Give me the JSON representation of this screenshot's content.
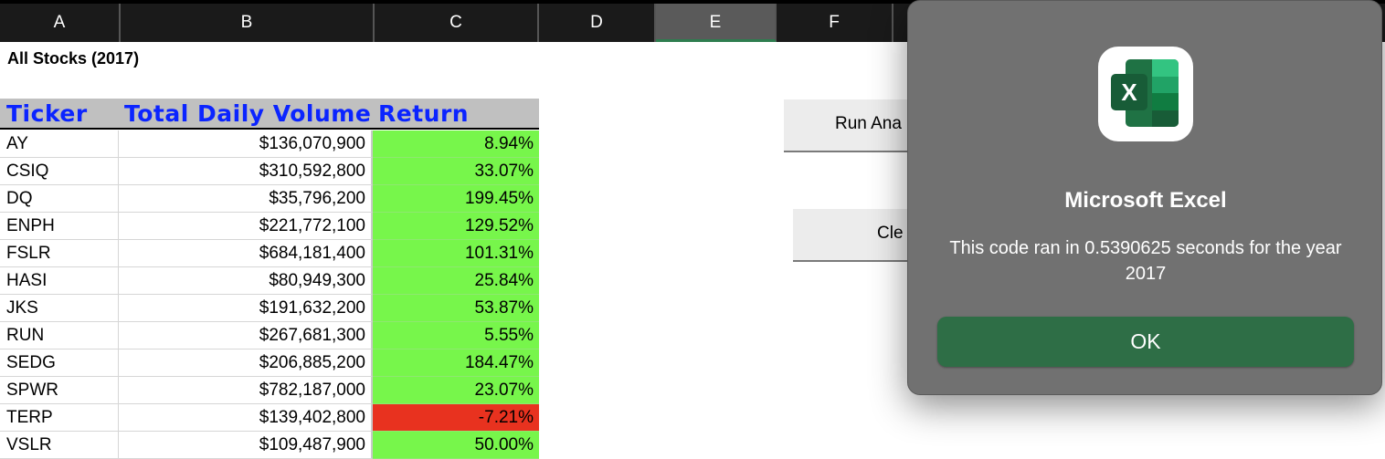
{
  "columns": [
    "A",
    "B",
    "C",
    "D",
    "E",
    "F"
  ],
  "sheet": {
    "title": "All Stocks (2017)",
    "headers": {
      "ticker": "Ticker",
      "volume": "Total Daily Volume",
      "return": "Return"
    },
    "rows": [
      {
        "ticker": "AY",
        "volume": "$136,070,900",
        "return": "8.94%"
      },
      {
        "ticker": "CSIQ",
        "volume": "$310,592,800",
        "return": "33.07%"
      },
      {
        "ticker": "DQ",
        "volume": "$35,796,200",
        "return": "199.45%"
      },
      {
        "ticker": "ENPH",
        "volume": "$221,772,100",
        "return": "129.52%"
      },
      {
        "ticker": "FSLR",
        "volume": "$684,181,400",
        "return": "101.31%"
      },
      {
        "ticker": "HASI",
        "volume": "$80,949,300",
        "return": "25.84%"
      },
      {
        "ticker": "JKS",
        "volume": "$191,632,200",
        "return": "53.87%"
      },
      {
        "ticker": "RUN",
        "volume": "$267,681,300",
        "return": "5.55%"
      },
      {
        "ticker": "SEDG",
        "volume": "$206,885,200",
        "return": "184.47%"
      },
      {
        "ticker": "SPWR",
        "volume": "$782,187,000",
        "return": "23.07%"
      },
      {
        "ticker": "TERP",
        "volume": "$139,402,800",
        "return": "-7.21%"
      },
      {
        "ticker": "VSLR",
        "volume": "$109,487,900",
        "return": "50.00%"
      }
    ]
  },
  "buttons": {
    "run_label": "Run Ana",
    "clear_label": "Cle"
  },
  "dialog": {
    "app_name": "Microsoft Excel",
    "message": "This code ran in 0.5390625 seconds for the year 2017",
    "ok_label": "OK",
    "icon": "excel-app-icon",
    "icon_letter": "X"
  },
  "colors": {
    "positive": "#77f64b",
    "negative": "#e8321f",
    "header_text": "#0b24ff",
    "ok_button": "#2e6e46"
  }
}
